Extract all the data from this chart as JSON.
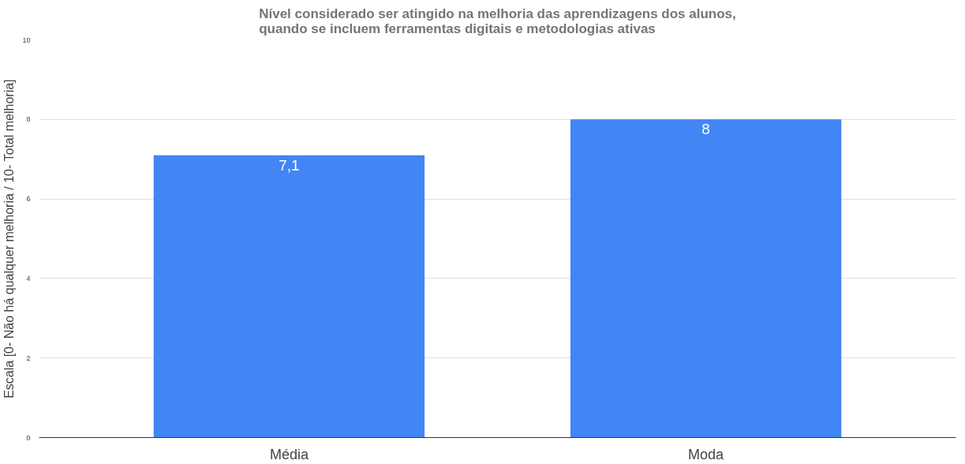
{
  "chart_data": {
    "type": "bar",
    "title": "Nível considerado ser atingido na melhoria das aprendizagens dos alunos, quando se incluem ferramentas digitais e metodologias ativas",
    "ylabel": "Escala [0- Não há qualquer melhoria / 10- Total melhoria]",
    "categories": [
      "Média",
      "Moda"
    ],
    "values": [
      7.1,
      8
    ],
    "value_labels": [
      "7,1",
      "8"
    ],
    "color": "#4285f4",
    "ylim": [
      0,
      10
    ],
    "yticks": [
      0,
      2,
      4,
      6,
      8,
      10
    ],
    "grid": "y"
  }
}
